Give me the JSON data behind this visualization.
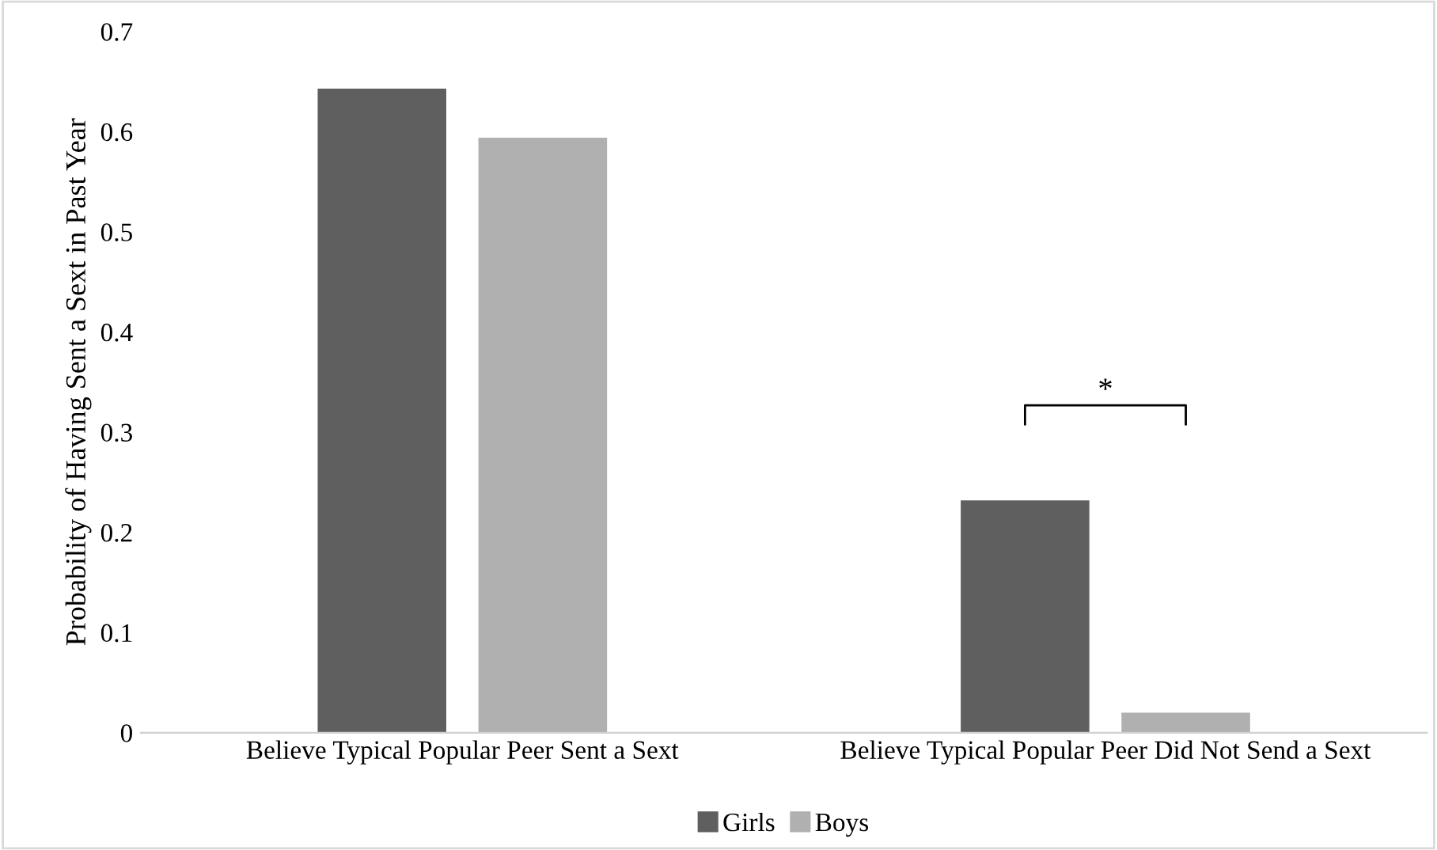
{
  "chart_data": {
    "type": "bar",
    "ylabel": "Probability of Having Sent a Sext in Past Year",
    "categories": [
      "Believe Typical Popular Peer Sent a Sext",
      "Believe Typical Popular Peer Did Not Send a Sext"
    ],
    "series": [
      {
        "name": "Girls",
        "color": "#5f5f5f",
        "values": [
          0.643,
          0.232
        ]
      },
      {
        "name": "Boys",
        "color": "#b0b0b0",
        "values": [
          0.594,
          0.02
        ]
      }
    ],
    "ylim": [
      0,
      0.7
    ],
    "yticks": [
      0,
      0.1,
      0.2,
      0.3,
      0.4,
      0.5,
      0.6,
      0.7
    ],
    "grid": false,
    "legend": "bottom",
    "annotations": [
      "*"
    ]
  }
}
